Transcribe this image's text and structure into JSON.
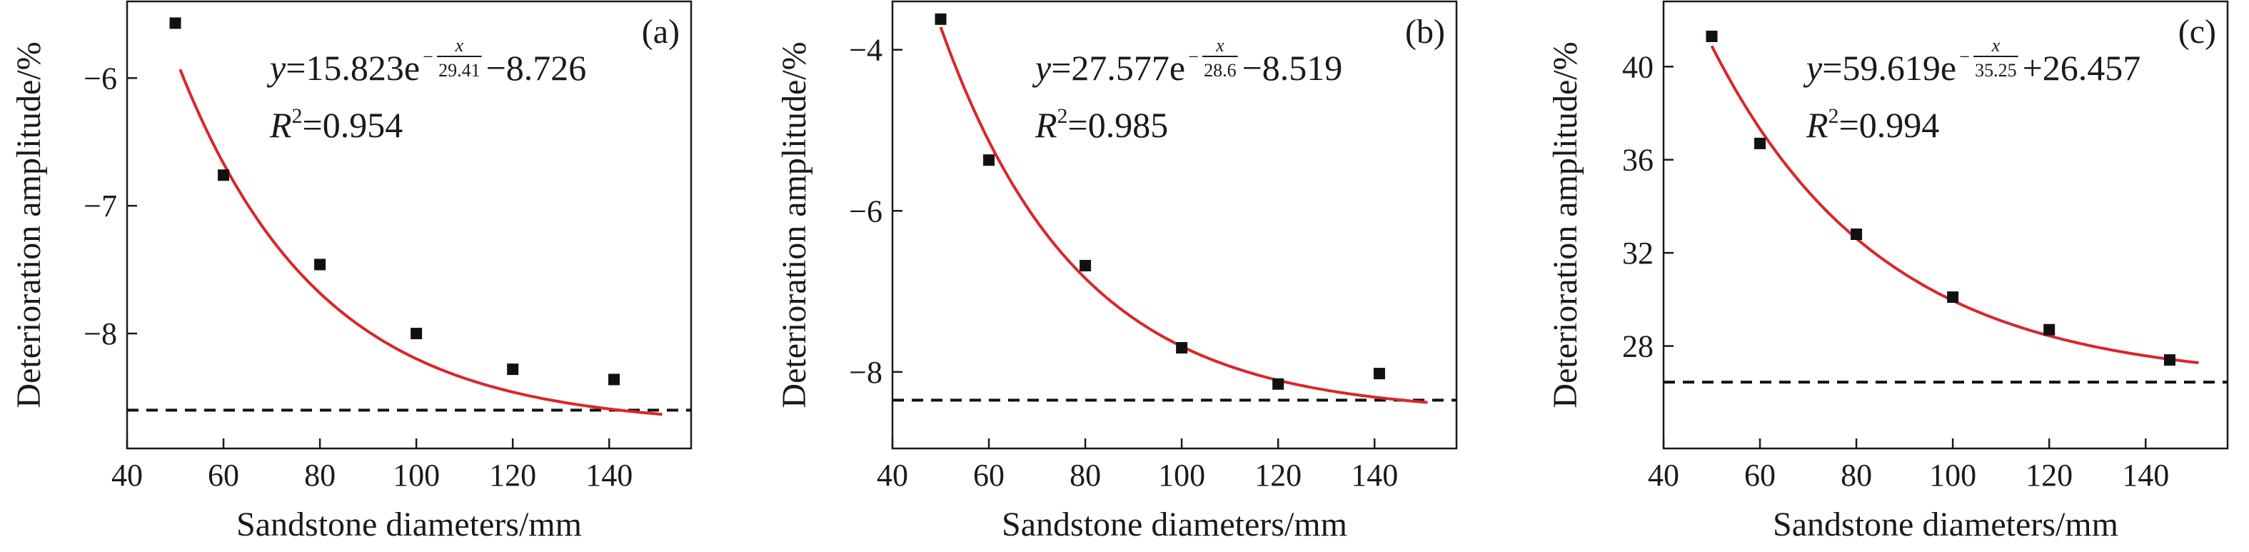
{
  "chart_data": [
    {
      "type": "scatter",
      "panel_label": "(a)",
      "xlabel": "Sandstone diameters/mm",
      "ylabel": "Deterioration amplitude/%",
      "xlim": [
        40,
        157
      ],
      "ylim": [
        -8.9,
        -5.4
      ],
      "x_ticks": [
        40,
        60,
        80,
        100,
        120,
        140
      ],
      "y_ticks": [
        -6,
        -7,
        -8
      ],
      "points": {
        "x": [
          50,
          60,
          80,
          100,
          120,
          141
        ],
        "y": [
          -5.57,
          -6.76,
          -7.46,
          -8.0,
          -8.28,
          -8.36
        ]
      },
      "fit": {
        "A": 15.823,
        "t": 29.41,
        "c": -8.726,
        "x_range": [
          51,
          151
        ]
      },
      "equation": {
        "y": "y",
        "eq1": "=15.823e",
        "exp_num": "x",
        "exp_den": "29.41",
        "eq2": "−8.726",
        "r2_R": "R",
        "r2_sup": "2",
        "r2_val": "=0.954"
      },
      "asymptote": -8.6,
      "grid": false,
      "colors": {
        "points": "#111111",
        "fit": "#d9262b",
        "asymptote": "#111111"
      }
    },
    {
      "type": "scatter",
      "panel_label": "(b)",
      "xlabel": "Sandstone diameters/mm",
      "ylabel": "Deterioration amplitude/%",
      "xlim": [
        40,
        157
      ],
      "ylim": [
        -8.95,
        -3.4
      ],
      "x_ticks": [
        40,
        60,
        80,
        100,
        120,
        140
      ],
      "y_ticks": [
        -4,
        -6,
        -8
      ],
      "points": {
        "x": [
          50,
          60,
          80,
          100,
          120,
          141
        ],
        "y": [
          -3.62,
          -5.37,
          -6.68,
          -7.7,
          -8.15,
          -8.02
        ]
      },
      "fit": {
        "A": 27.577,
        "t": 28.6,
        "c": -8.519,
        "x_range": [
          50,
          151
        ]
      },
      "equation": {
        "y": "y",
        "eq1": "=27.577e",
        "exp_num": "x",
        "exp_den": "28.6",
        "eq2": "−8.519",
        "r2_R": "R",
        "r2_sup": "2",
        "r2_val": "=0.985"
      },
      "asymptote": -8.35,
      "grid": false,
      "colors": {
        "points": "#111111",
        "fit": "#d9262b",
        "asymptote": "#111111"
      }
    },
    {
      "type": "scatter",
      "panel_label": "(c)",
      "xlabel": "Sandstone diameters/mm",
      "ylabel": "Deterioration amplitude/%",
      "xlim": [
        40,
        157
      ],
      "ylim": [
        23.6,
        42.8
      ],
      "x_ticks": [
        40,
        60,
        80,
        100,
        120,
        140
      ],
      "y_ticks": [
        28,
        32,
        36,
        40
      ],
      "points": {
        "x": [
          50,
          60,
          80,
          100,
          120,
          145
        ],
        "y": [
          41.3,
          36.7,
          32.8,
          30.1,
          28.7,
          27.4
        ]
      },
      "fit": {
        "A": 59.619,
        "t": 35.25,
        "c": 26.457,
        "x_range": [
          50,
          151
        ]
      },
      "equation": {
        "y": "y",
        "eq1": "=59.619e",
        "exp_num": "x",
        "exp_den": "35.25",
        "eq2": "+26.457",
        "r2_R": "R",
        "r2_sup": "2",
        "r2_val": "=0.994"
      },
      "asymptote": 26.45,
      "grid": false,
      "colors": {
        "points": "#111111",
        "fit": "#d9262b",
        "asymptote": "#111111"
      }
    }
  ]
}
